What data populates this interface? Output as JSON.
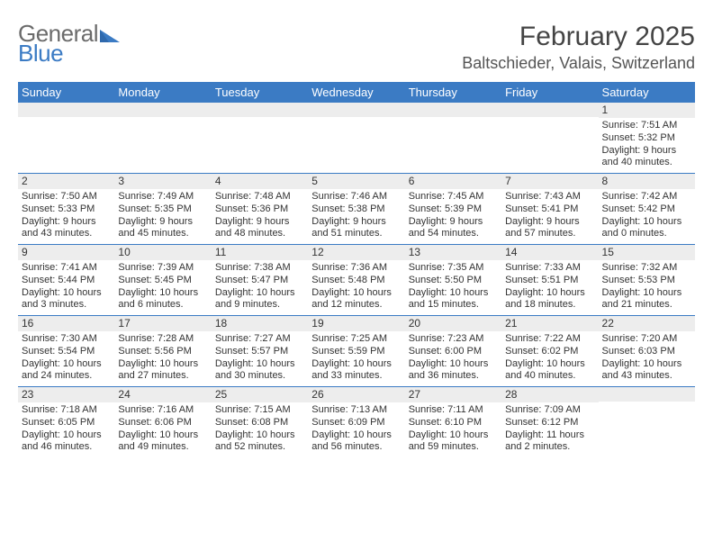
{
  "brand": {
    "part1": "General",
    "part2": "Blue"
  },
  "title": "February 2025",
  "location": "Baltschieder, Valais, Switzerland",
  "colors": {
    "header_bg": "#3b7bc4",
    "bar_bg": "#ededed",
    "text": "#333333",
    "title_text": "#444444",
    "logo_gray": "#6b6b6b",
    "logo_blue": "#3b7bc4",
    "page_bg": "#ffffff"
  },
  "fonts": {
    "base_family": "Arial",
    "month_title_size_pt": 22,
    "location_size_pt": 13,
    "header_cell_size_pt": 10,
    "day_num_size_pt": 9,
    "day_body_size_pt": 8
  },
  "day_headers": [
    "Sunday",
    "Monday",
    "Tuesday",
    "Wednesday",
    "Thursday",
    "Friday",
    "Saturday"
  ],
  "weeks": [
    [
      {
        "num": "",
        "sunrise": "",
        "sunset": "",
        "daylight": ""
      },
      {
        "num": "",
        "sunrise": "",
        "sunset": "",
        "daylight": ""
      },
      {
        "num": "",
        "sunrise": "",
        "sunset": "",
        "daylight": ""
      },
      {
        "num": "",
        "sunrise": "",
        "sunset": "",
        "daylight": ""
      },
      {
        "num": "",
        "sunrise": "",
        "sunset": "",
        "daylight": ""
      },
      {
        "num": "",
        "sunrise": "",
        "sunset": "",
        "daylight": ""
      },
      {
        "num": "1",
        "sunrise": "Sunrise: 7:51 AM",
        "sunset": "Sunset: 5:32 PM",
        "daylight": "Daylight: 9 hours and 40 minutes."
      }
    ],
    [
      {
        "num": "2",
        "sunrise": "Sunrise: 7:50 AM",
        "sunset": "Sunset: 5:33 PM",
        "daylight": "Daylight: 9 hours and 43 minutes."
      },
      {
        "num": "3",
        "sunrise": "Sunrise: 7:49 AM",
        "sunset": "Sunset: 5:35 PM",
        "daylight": "Daylight: 9 hours and 45 minutes."
      },
      {
        "num": "4",
        "sunrise": "Sunrise: 7:48 AM",
        "sunset": "Sunset: 5:36 PM",
        "daylight": "Daylight: 9 hours and 48 minutes."
      },
      {
        "num": "5",
        "sunrise": "Sunrise: 7:46 AM",
        "sunset": "Sunset: 5:38 PM",
        "daylight": "Daylight: 9 hours and 51 minutes."
      },
      {
        "num": "6",
        "sunrise": "Sunrise: 7:45 AM",
        "sunset": "Sunset: 5:39 PM",
        "daylight": "Daylight: 9 hours and 54 minutes."
      },
      {
        "num": "7",
        "sunrise": "Sunrise: 7:43 AM",
        "sunset": "Sunset: 5:41 PM",
        "daylight": "Daylight: 9 hours and 57 minutes."
      },
      {
        "num": "8",
        "sunrise": "Sunrise: 7:42 AM",
        "sunset": "Sunset: 5:42 PM",
        "daylight": "Daylight: 10 hours and 0 minutes."
      }
    ],
    [
      {
        "num": "9",
        "sunrise": "Sunrise: 7:41 AM",
        "sunset": "Sunset: 5:44 PM",
        "daylight": "Daylight: 10 hours and 3 minutes."
      },
      {
        "num": "10",
        "sunrise": "Sunrise: 7:39 AM",
        "sunset": "Sunset: 5:45 PM",
        "daylight": "Daylight: 10 hours and 6 minutes."
      },
      {
        "num": "11",
        "sunrise": "Sunrise: 7:38 AM",
        "sunset": "Sunset: 5:47 PM",
        "daylight": "Daylight: 10 hours and 9 minutes."
      },
      {
        "num": "12",
        "sunrise": "Sunrise: 7:36 AM",
        "sunset": "Sunset: 5:48 PM",
        "daylight": "Daylight: 10 hours and 12 minutes."
      },
      {
        "num": "13",
        "sunrise": "Sunrise: 7:35 AM",
        "sunset": "Sunset: 5:50 PM",
        "daylight": "Daylight: 10 hours and 15 minutes."
      },
      {
        "num": "14",
        "sunrise": "Sunrise: 7:33 AM",
        "sunset": "Sunset: 5:51 PM",
        "daylight": "Daylight: 10 hours and 18 minutes."
      },
      {
        "num": "15",
        "sunrise": "Sunrise: 7:32 AM",
        "sunset": "Sunset: 5:53 PM",
        "daylight": "Daylight: 10 hours and 21 minutes."
      }
    ],
    [
      {
        "num": "16",
        "sunrise": "Sunrise: 7:30 AM",
        "sunset": "Sunset: 5:54 PM",
        "daylight": "Daylight: 10 hours and 24 minutes."
      },
      {
        "num": "17",
        "sunrise": "Sunrise: 7:28 AM",
        "sunset": "Sunset: 5:56 PM",
        "daylight": "Daylight: 10 hours and 27 minutes."
      },
      {
        "num": "18",
        "sunrise": "Sunrise: 7:27 AM",
        "sunset": "Sunset: 5:57 PM",
        "daylight": "Daylight: 10 hours and 30 minutes."
      },
      {
        "num": "19",
        "sunrise": "Sunrise: 7:25 AM",
        "sunset": "Sunset: 5:59 PM",
        "daylight": "Daylight: 10 hours and 33 minutes."
      },
      {
        "num": "20",
        "sunrise": "Sunrise: 7:23 AM",
        "sunset": "Sunset: 6:00 PM",
        "daylight": "Daylight: 10 hours and 36 minutes."
      },
      {
        "num": "21",
        "sunrise": "Sunrise: 7:22 AM",
        "sunset": "Sunset: 6:02 PM",
        "daylight": "Daylight: 10 hours and 40 minutes."
      },
      {
        "num": "22",
        "sunrise": "Sunrise: 7:20 AM",
        "sunset": "Sunset: 6:03 PM",
        "daylight": "Daylight: 10 hours and 43 minutes."
      }
    ],
    [
      {
        "num": "23",
        "sunrise": "Sunrise: 7:18 AM",
        "sunset": "Sunset: 6:05 PM",
        "daylight": "Daylight: 10 hours and 46 minutes."
      },
      {
        "num": "24",
        "sunrise": "Sunrise: 7:16 AM",
        "sunset": "Sunset: 6:06 PM",
        "daylight": "Daylight: 10 hours and 49 minutes."
      },
      {
        "num": "25",
        "sunrise": "Sunrise: 7:15 AM",
        "sunset": "Sunset: 6:08 PM",
        "daylight": "Daylight: 10 hours and 52 minutes."
      },
      {
        "num": "26",
        "sunrise": "Sunrise: 7:13 AM",
        "sunset": "Sunset: 6:09 PM",
        "daylight": "Daylight: 10 hours and 56 minutes."
      },
      {
        "num": "27",
        "sunrise": "Sunrise: 7:11 AM",
        "sunset": "Sunset: 6:10 PM",
        "daylight": "Daylight: 10 hours and 59 minutes."
      },
      {
        "num": "28",
        "sunrise": "Sunrise: 7:09 AM",
        "sunset": "Sunset: 6:12 PM",
        "daylight": "Daylight: 11 hours and 2 minutes."
      },
      {
        "num": "",
        "sunrise": "",
        "sunset": "",
        "daylight": ""
      }
    ]
  ]
}
